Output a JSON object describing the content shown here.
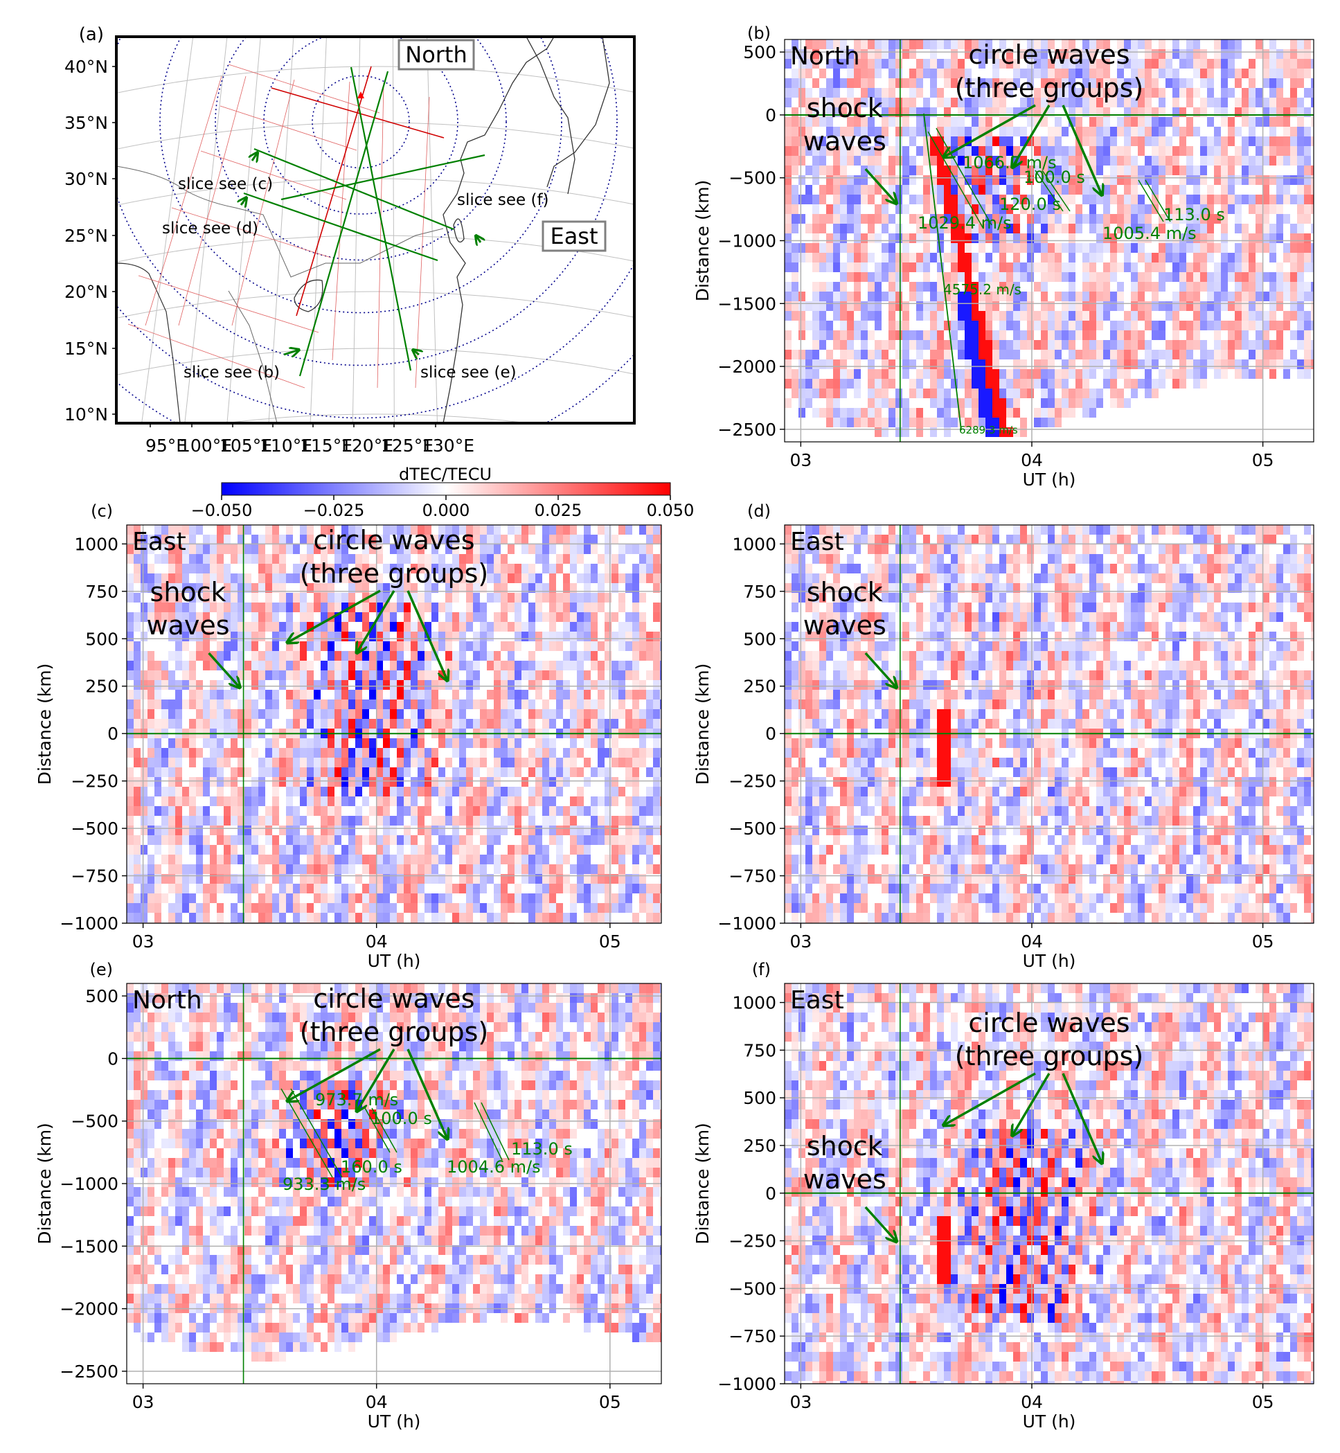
{
  "colors": {
    "negative": "#0000ff",
    "zero": "#ffffff",
    "positive": "#ff0000",
    "annotation": "#008000",
    "grid": "#b0b0b0",
    "range_rings": "#00008b"
  },
  "colorbar": {
    "label": "dTEC/TECU",
    "min": -0.05,
    "max": 0.05,
    "ticks": [
      "−0.050",
      "−0.025",
      "0.000",
      "0.025",
      "0.050"
    ],
    "tick_values": [
      -0.05,
      -0.025,
      0,
      0.025,
      0.05
    ]
  },
  "chart_data": [
    {
      "panel": "(a)",
      "type": "map",
      "lat_ticks": [
        "40°N",
        "35°N",
        "30°N",
        "25°N",
        "20°N",
        "15°N",
        "10°N"
      ],
      "lon_ticks": [
        "95°E",
        "100°E",
        "105°E",
        "110°E",
        "115°E",
        "120°E",
        "125°E",
        "130°E"
      ],
      "direction_labels": [
        "North",
        "East"
      ],
      "slice_labels": [
        "slice see (b)",
        "slice see (c)",
        "slice see (d)",
        "slice see (e)",
        "slice see (f)"
      ],
      "epicenter": {
        "lon": 112,
        "lat": 35
      }
    },
    {
      "panel": "(b)",
      "type": "heatmap",
      "direction": "North",
      "xlabel": "UT (h)",
      "ylabel": "Distance (km)",
      "xlim": [
        2.93,
        5.22
      ],
      "ylim": [
        -2600,
        600
      ],
      "x_ticks": [
        "03",
        "04",
        "05"
      ],
      "x_tick_values": [
        3,
        4,
        5
      ],
      "y_ticks": [
        "500",
        "0",
        "−500",
        "−1000",
        "−1500",
        "−2000",
        "−2500"
      ],
      "y_tick_values": [
        500,
        0,
        -500,
        -1000,
        -1500,
        -2000,
        -2500
      ],
      "reference_time": 3.43,
      "reference_distance": 0,
      "shock_label": [
        "shock",
        "waves"
      ],
      "circle_label": [
        "circle waves",
        "(three groups)"
      ],
      "annotations": [
        "1066.7 m/s",
        "100.0 s",
        "120.0 s",
        "1029.4 m/s",
        "113.0 s",
        "1005.4 m/s",
        "4575.2 m/s",
        "6289.3 m/s"
      ]
    },
    {
      "panel": "(c)",
      "type": "heatmap",
      "direction": "East",
      "xlabel": "UT (h)",
      "ylabel": "Distance (km)",
      "xlim": [
        2.93,
        5.22
      ],
      "ylim": [
        -1000,
        1100
      ],
      "x_ticks": [
        "03",
        "04",
        "05"
      ],
      "x_tick_values": [
        3,
        4,
        5
      ],
      "y_ticks": [
        "1000",
        "750",
        "500",
        "250",
        "0",
        "−250",
        "−500",
        "−750",
        "−1000"
      ],
      "y_tick_values": [
        1000,
        750,
        500,
        250,
        0,
        -250,
        -500,
        -750,
        -1000
      ],
      "reference_time": 3.43,
      "reference_distance": 0,
      "shock_label": [
        "shock",
        "waves"
      ],
      "circle_label": [
        "circle waves",
        "(three groups)"
      ],
      "annotations": []
    },
    {
      "panel": "(d)",
      "type": "heatmap",
      "direction": "East",
      "xlabel": "UT (h)",
      "ylabel": "Distance (km)",
      "xlim": [
        2.93,
        5.22
      ],
      "ylim": [
        -1000,
        1100
      ],
      "x_ticks": [
        "03",
        "04",
        "05"
      ],
      "x_tick_values": [
        3,
        4,
        5
      ],
      "y_ticks": [
        "1000",
        "750",
        "500",
        "250",
        "0",
        "−250",
        "−500",
        "−750",
        "−1000"
      ],
      "y_tick_values": [
        1000,
        750,
        500,
        250,
        0,
        -250,
        -500,
        -750,
        -1000
      ],
      "reference_time": 3.43,
      "reference_distance": 0,
      "shock_label": [
        "shock",
        "waves"
      ],
      "circle_label": [],
      "annotations": []
    },
    {
      "panel": "(e)",
      "type": "heatmap",
      "direction": "North",
      "xlabel": "UT (h)",
      "ylabel": "Distance (km)",
      "xlim": [
        2.93,
        5.22
      ],
      "ylim": [
        -2600,
        600
      ],
      "x_ticks": [
        "03",
        "04",
        "05"
      ],
      "x_tick_values": [
        3,
        4,
        5
      ],
      "y_ticks": [
        "500",
        "0",
        "−500",
        "−1000",
        "−1500",
        "−2000",
        "−2500"
      ],
      "y_tick_values": [
        500,
        0,
        -500,
        -1000,
        -1500,
        -2000,
        -2500
      ],
      "reference_time": 3.43,
      "reference_distance": 0,
      "shock_label": [],
      "circle_label": [
        "circle waves",
        "(three groups)"
      ],
      "annotations": [
        "973.7 m/s",
        "100.0 s",
        "160.0 s",
        "933.3 m/s",
        "113.0 s",
        "1004.6 m/s"
      ]
    },
    {
      "panel": "(f)",
      "type": "heatmap",
      "direction": "East",
      "xlabel": "UT (h)",
      "ylabel": "Distance (km)",
      "xlim": [
        2.93,
        5.22
      ],
      "ylim": [
        -1000,
        1100
      ],
      "x_ticks": [
        "03",
        "04",
        "05"
      ],
      "x_tick_values": [
        3,
        4,
        5
      ],
      "y_ticks": [
        "1000",
        "750",
        "500",
        "250",
        "0",
        "−250",
        "−500",
        "−750",
        "−1000"
      ],
      "y_tick_values": [
        1000,
        750,
        500,
        250,
        0,
        -250,
        -500,
        -750,
        -1000
      ],
      "reference_time": 3.43,
      "reference_distance": 0,
      "shock_label": [
        "shock",
        "waves"
      ],
      "circle_label": [
        "circle waves",
        "(three groups)"
      ],
      "annotations": []
    }
  ]
}
